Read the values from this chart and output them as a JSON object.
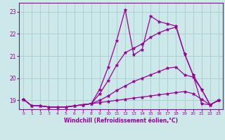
{
  "xlabel": "Windchill (Refroidissement éolien,°C)",
  "ylabel": "",
  "xlim": [
    -0.5,
    23.5
  ],
  "ylim": [
    18.6,
    23.4
  ],
  "yticks": [
    19,
    20,
    21,
    22,
    23
  ],
  "xticks": [
    0,
    1,
    2,
    3,
    4,
    5,
    6,
    7,
    8,
    9,
    10,
    11,
    12,
    13,
    14,
    15,
    16,
    17,
    18,
    19,
    20,
    21,
    22,
    23
  ],
  "background_color": "#cce8e8",
  "line_color": "#990099",
  "grid_color": "#aacccc",
  "series": [
    [
      19.05,
      18.75,
      18.75,
      18.7,
      18.7,
      18.7,
      18.75,
      18.8,
      18.85,
      19.5,
      20.5,
      21.7,
      23.1,
      21.05,
      21.3,
      22.8,
      22.55,
      22.45,
      22.35,
      21.1,
      20.15,
      18.85,
      18.8,
      19.0
    ],
    [
      19.05,
      18.75,
      18.75,
      18.7,
      18.7,
      18.7,
      18.75,
      18.8,
      18.85,
      19.3,
      19.9,
      20.6,
      21.15,
      21.35,
      21.55,
      21.85,
      22.05,
      22.2,
      22.3,
      21.1,
      20.15,
      19.5,
      18.8,
      19.0
    ],
    [
      19.05,
      18.75,
      18.75,
      18.7,
      18.7,
      18.7,
      18.75,
      18.8,
      18.85,
      19.0,
      19.2,
      19.45,
      19.65,
      19.85,
      20.0,
      20.15,
      20.3,
      20.45,
      20.5,
      20.15,
      20.05,
      19.5,
      18.8,
      19.0
    ],
    [
      19.05,
      18.75,
      18.75,
      18.7,
      18.7,
      18.7,
      18.75,
      18.8,
      18.85,
      18.9,
      18.95,
      19.0,
      19.05,
      19.1,
      19.15,
      19.2,
      19.25,
      19.3,
      19.35,
      19.4,
      19.3,
      19.05,
      18.8,
      19.0
    ]
  ]
}
